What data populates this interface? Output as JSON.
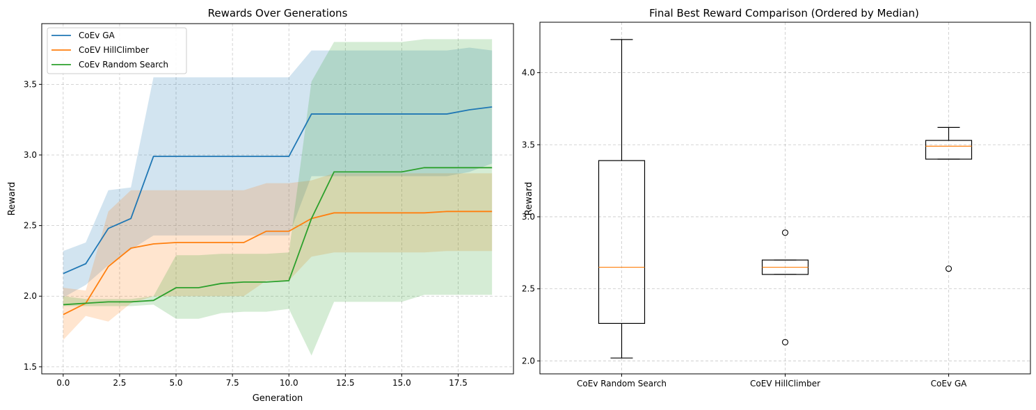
{
  "chart_data": [
    {
      "type": "line",
      "title": "Rewards Over Generations",
      "xlabel": "Generation",
      "ylabel": "Reward",
      "xlim": [
        -0.95,
        19.95
      ],
      "ylim": [
        1.45,
        3.93
      ],
      "xticks": [
        0,
        2.5,
        5,
        7.5,
        10,
        12.5,
        15,
        17.5
      ],
      "xtick_labels": [
        "0.0",
        "2.5",
        "5.0",
        "7.5",
        "10.0",
        "12.5",
        "15.0",
        "17.5"
      ],
      "yticks": [
        1.5,
        2.0,
        2.5,
        3.0,
        3.5
      ],
      "ytick_labels": [
        "1.5",
        "2.0",
        "2.5",
        "3.0",
        "3.5"
      ],
      "grid": true,
      "legend_position": "upper-left",
      "x": [
        0,
        1,
        2,
        3,
        4,
        5,
        6,
        7,
        8,
        9,
        10,
        11,
        12,
        13,
        14,
        15,
        16,
        17,
        18,
        19
      ],
      "series": [
        {
          "name": "CoEv GA",
          "color": "#1f77b4",
          "values": [
            2.16,
            2.23,
            2.48,
            2.55,
            2.99,
            2.99,
            2.99,
            2.99,
            2.99,
            2.99,
            2.99,
            3.29,
            3.29,
            3.29,
            3.29,
            3.29,
            3.29,
            3.29,
            3.32,
            3.34
          ],
          "upper": [
            2.32,
            2.38,
            2.75,
            2.77,
            3.55,
            3.55,
            3.55,
            3.55,
            3.55,
            3.55,
            3.55,
            3.74,
            3.74,
            3.74,
            3.74,
            3.74,
            3.74,
            3.74,
            3.76,
            3.74
          ],
          "lower": [
            1.99,
            2.08,
            2.22,
            2.33,
            2.43,
            2.43,
            2.43,
            2.43,
            2.43,
            2.43,
            2.43,
            2.85,
            2.85,
            2.85,
            2.85,
            2.85,
            2.85,
            2.85,
            2.88,
            2.94
          ]
        },
        {
          "name": "CoEV HillClimber",
          "color": "#ff7f0e",
          "values": [
            1.87,
            1.95,
            2.21,
            2.34,
            2.37,
            2.38,
            2.38,
            2.38,
            2.38,
            2.46,
            2.46,
            2.55,
            2.59,
            2.59,
            2.59,
            2.59,
            2.59,
            2.6,
            2.6,
            2.6
          ],
          "upper": [
            2.06,
            2.04,
            2.6,
            2.75,
            2.75,
            2.75,
            2.75,
            2.75,
            2.75,
            2.8,
            2.8,
            2.82,
            2.87,
            2.87,
            2.87,
            2.87,
            2.87,
            2.87,
            2.87,
            2.87
          ],
          "lower": [
            1.69,
            1.86,
            1.82,
            1.95,
            2.0,
            2.0,
            2.0,
            2.0,
            2.0,
            2.11,
            2.11,
            2.28,
            2.31,
            2.31,
            2.31,
            2.31,
            2.31,
            2.32,
            2.32,
            2.32
          ]
        },
        {
          "name": "CoEv Random Search",
          "color": "#2ca02c",
          "values": [
            1.94,
            1.95,
            1.96,
            1.96,
            1.97,
            2.06,
            2.06,
            2.09,
            2.1,
            2.1,
            2.11,
            2.55,
            2.88,
            2.88,
            2.88,
            2.88,
            2.91,
            2.91,
            2.91,
            2.91
          ],
          "upper": [
            2.0,
            1.98,
            1.98,
            1.98,
            2.0,
            2.29,
            2.29,
            2.3,
            2.3,
            2.3,
            2.31,
            3.52,
            3.8,
            3.8,
            3.8,
            3.8,
            3.82,
            3.82,
            3.82,
            3.82
          ],
          "lower": [
            1.93,
            1.93,
            1.93,
            1.93,
            1.94,
            1.84,
            1.84,
            1.88,
            1.89,
            1.89,
            1.91,
            1.58,
            1.96,
            1.96,
            1.96,
            1.96,
            2.01,
            2.01,
            2.01,
            2.01
          ]
        }
      ]
    },
    {
      "type": "box",
      "title": "Final Best Reward Comparison (Ordered by Median)",
      "xlabel": "",
      "ylabel": "Reward",
      "ylim": [
        1.91,
        4.35
      ],
      "yticks": [
        2.0,
        2.5,
        3.0,
        3.5,
        4.0
      ],
      "ytick_labels": [
        "2.0",
        "2.5",
        "3.0",
        "3.5",
        "4.0"
      ],
      "grid": true,
      "categories": [
        "CoEv Random Search",
        "CoEV HillClimber",
        "CoEv GA"
      ],
      "boxes": [
        {
          "name": "CoEv Random Search",
          "whisker_low": 2.02,
          "q1": 2.26,
          "median": 2.65,
          "q3": 3.39,
          "whisker_high": 4.23,
          "outliers": []
        },
        {
          "name": "CoEV HillClimber",
          "whisker_low": 2.6,
          "q1": 2.6,
          "median": 2.65,
          "q3": 2.7,
          "whisker_high": 2.7,
          "outliers": [
            2.89,
            2.13
          ]
        },
        {
          "name": "CoEv GA",
          "whisker_low": 3.4,
          "q1": 3.4,
          "median": 3.49,
          "q3": 3.53,
          "whisker_high": 3.62,
          "outliers": [
            2.64
          ]
        }
      ],
      "box_color": "#000000",
      "median_color": "#ff7f0e"
    }
  ]
}
